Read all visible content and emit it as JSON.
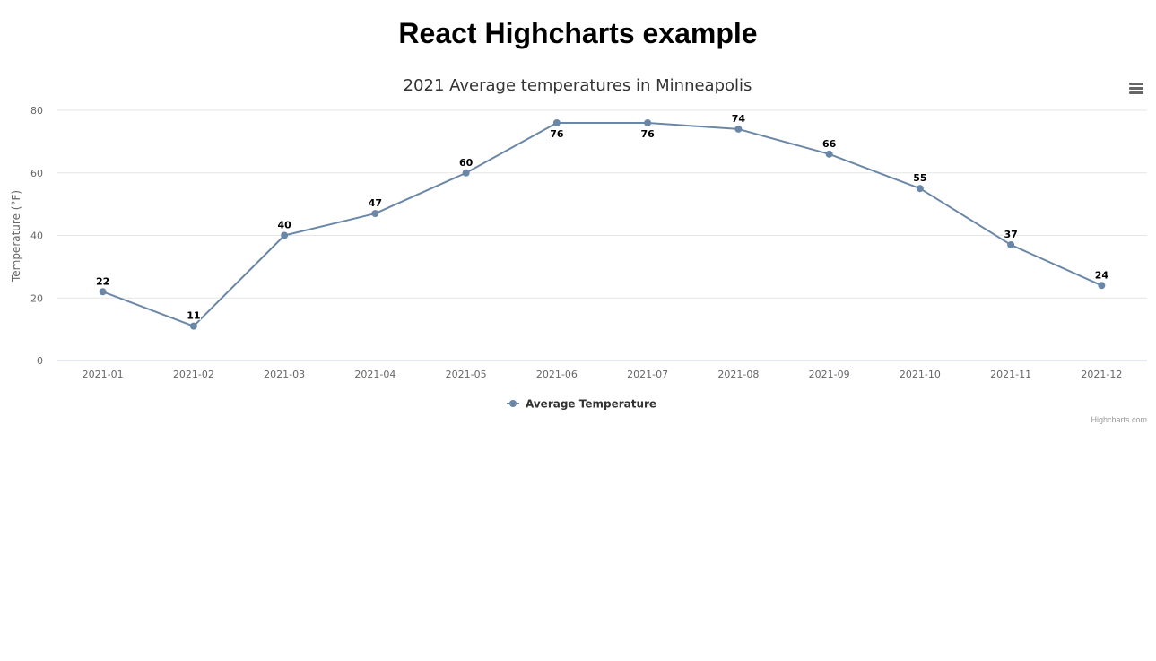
{
  "page": {
    "title": "React Highcharts example"
  },
  "colors": {
    "series": "#6b87a8",
    "grid": "#e6e6e6",
    "axis_line": "#ccd6eb",
    "text": "#333333",
    "tick_text": "#666666",
    "data_label": "#000000"
  },
  "menu": {
    "icon": "hamburger-menu-icon"
  },
  "credits": {
    "text": "Highcharts.com"
  },
  "chart_data": {
    "type": "line",
    "title": "2021 Average temperatures in Minneapolis",
    "xlabel": "",
    "ylabel": "Temperature (°F)",
    "categories": [
      "2021-01",
      "2021-02",
      "2021-03",
      "2021-04",
      "2021-05",
      "2021-06",
      "2021-07",
      "2021-08",
      "2021-09",
      "2021-10",
      "2021-11",
      "2021-12"
    ],
    "series": [
      {
        "name": "Average Temperature",
        "values": [
          22,
          11,
          40,
          47,
          60,
          76,
          76,
          74,
          66,
          55,
          37,
          24
        ],
        "color": "#6b87a8"
      }
    ],
    "ylim": [
      0,
      80
    ],
    "yticks": [
      0,
      20,
      40,
      60,
      80
    ],
    "grid": true,
    "legend": "bottom-center",
    "data_labels": true
  }
}
